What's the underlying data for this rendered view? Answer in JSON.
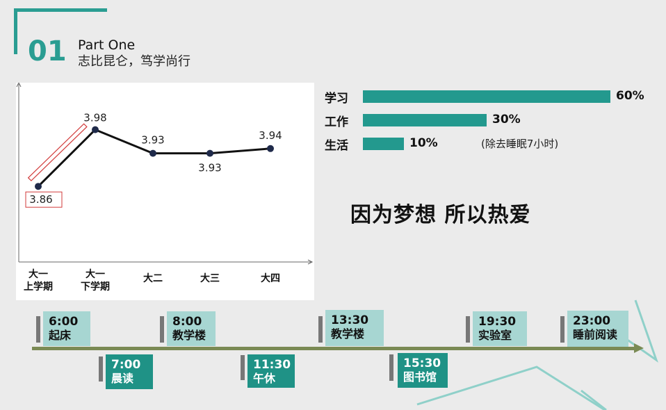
{
  "header": {
    "number": "01",
    "title": "Part One",
    "subtitle": "志比昆仑，笃学尚行"
  },
  "chart_data": {
    "type": "line",
    "categories": [
      "大一\n上学期",
      "大一\n下学期",
      "大二",
      "大三",
      "大四"
    ],
    "values": [
      3.86,
      3.98,
      3.93,
      3.93,
      3.94
    ],
    "value_labels": [
      "3.86",
      "3.98",
      "3.93",
      "3.93",
      "3.94"
    ],
    "title": "",
    "xlabel": "",
    "ylabel": "",
    "ylim": [
      3.7,
      4.05
    ],
    "grid": false,
    "colors": {
      "line": "#111111",
      "marker": "#1f2a4a",
      "highlight": "#d23a3a"
    }
  },
  "bars": {
    "items": [
      {
        "label": "学习",
        "value": 60,
        "value_label": "60%"
      },
      {
        "label": "工作",
        "value": 30,
        "value_label": "30%"
      },
      {
        "label": "生活",
        "value": 10,
        "value_label": "10%"
      }
    ],
    "note": "(除去睡眠7小时)",
    "color": "#23998e"
  },
  "slogan": "因为梦想 所以热爱",
  "timeline": {
    "events": [
      {
        "time": "6:00",
        "label": "起床",
        "style": "light"
      },
      {
        "time": "7:00",
        "label": "晨读",
        "style": "dark"
      },
      {
        "time": "8:00",
        "label": "教学楼",
        "style": "light"
      },
      {
        "time": "11:30",
        "label": "午休",
        "style": "dark"
      },
      {
        "time": "13:30",
        "label": "教学楼",
        "style": "light"
      },
      {
        "time": "15:30",
        "label": "图书馆",
        "style": "dark"
      },
      {
        "time": "19:30",
        "label": "实验室",
        "style": "light"
      },
      {
        "time": "23:00",
        "label": "睡前阅读",
        "style": "light"
      }
    ]
  },
  "colors": {
    "accent": "#2a9d92",
    "background": "#ebebeb"
  }
}
